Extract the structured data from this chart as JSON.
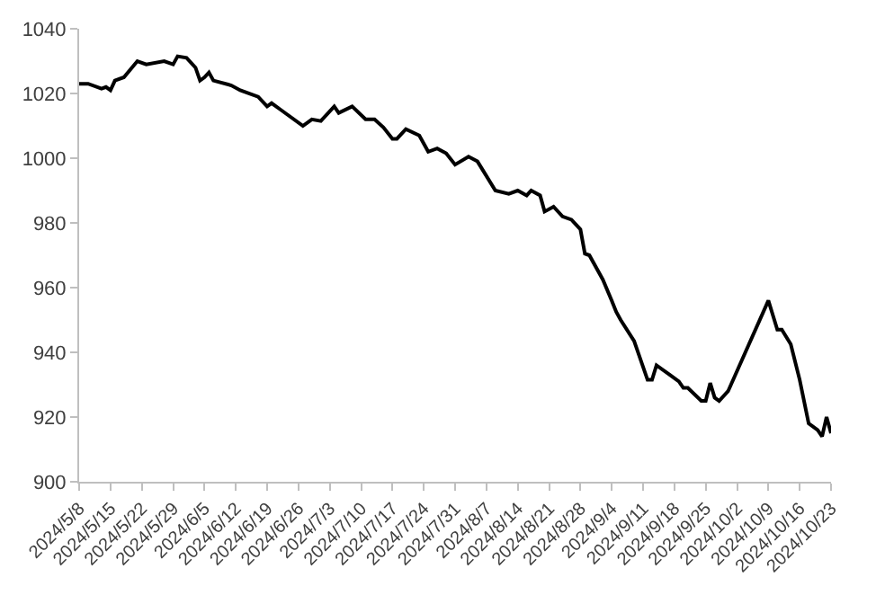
{
  "chart_data": {
    "type": "line",
    "x": [
      "2024-05-08",
      "2024-05-10",
      "2024-05-13",
      "2024-05-14",
      "2024-05-15",
      "2024-05-16",
      "2024-05-18",
      "2024-05-21",
      "2024-05-23",
      "2024-05-27",
      "2024-05-29",
      "2024-05-30",
      "2024-06-01",
      "2024-06-03",
      "2024-06-04",
      "2024-06-05",
      "2024-06-06",
      "2024-06-07",
      "2024-06-11",
      "2024-06-13",
      "2024-06-17",
      "2024-06-19",
      "2024-06-20",
      "2024-06-22",
      "2024-06-27",
      "2024-06-29",
      "2024-07-01",
      "2024-07-04",
      "2024-07-05",
      "2024-07-08",
      "2024-07-11",
      "2024-07-13",
      "2024-07-15",
      "2024-07-17",
      "2024-07-18",
      "2024-07-20",
      "2024-07-23",
      "2024-07-25",
      "2024-07-27",
      "2024-07-29",
      "2024-07-31",
      "2024-08-03",
      "2024-08-05",
      "2024-08-09",
      "2024-08-12",
      "2024-08-14",
      "2024-08-16",
      "2024-08-17",
      "2024-08-19",
      "2024-08-20",
      "2024-08-22",
      "2024-08-24",
      "2024-08-26",
      "2024-08-28",
      "2024-08-29",
      "2024-08-30",
      "2024-09-02",
      "2024-09-04",
      "2024-09-05",
      "2024-09-06",
      "2024-09-09",
      "2024-09-12",
      "2024-09-13",
      "2024-09-14",
      "2024-09-17",
      "2024-09-19",
      "2024-09-20",
      "2024-09-21",
      "2024-09-24",
      "2024-09-25",
      "2024-09-26",
      "2024-09-27",
      "2024-09-28",
      "2024-09-30",
      "2024-10-09",
      "2024-10-11",
      "2024-10-12",
      "2024-10-14",
      "2024-10-16",
      "2024-10-18",
      "2024-10-20",
      "2024-10-21",
      "2024-10-22",
      "2024-10-23"
    ],
    "series": [
      {
        "color": "#000000",
        "values": [
          1023,
          1023,
          1021.5,
          1022,
          1021,
          1024,
          1025,
          1030,
          1029,
          1030,
          1029,
          1031.5,
          1031,
          1028,
          1024,
          1025,
          1026.5,
          1024,
          1022.5,
          1021,
          1019,
          1016,
          1017,
          1015,
          1010,
          1012,
          1011.5,
          1016,
          1014,
          1016,
          1012,
          1012,
          1009.5,
          1006,
          1006,
          1009,
          1007,
          1002,
          1003,
          1001.5,
          998,
          1000.5,
          999,
          990,
          989,
          990,
          988.5,
          990,
          988.5,
          983.5,
          985,
          982,
          981,
          978,
          970.5,
          970,
          962.5,
          956,
          952.5,
          950,
          943.5,
          931.5,
          931.5,
          936,
          933,
          931,
          929,
          929,
          925,
          925,
          930.5,
          926,
          925,
          928,
          956,
          947,
          947,
          942.5,
          931.5,
          918,
          916,
          914,
          920,
          915
        ]
      }
    ],
    "xlim": [
      "2024-05-08",
      "2024-10-23"
    ],
    "xticks": [
      {
        "value": "2024-05-08",
        "label": "2024/5/8"
      },
      {
        "value": "2024-05-15",
        "label": "2024/5/15"
      },
      {
        "value": "2024-05-22",
        "label": "2024/5/22"
      },
      {
        "value": "2024-05-29",
        "label": "2024/5/29"
      },
      {
        "value": "2024-06-05",
        "label": "2024/6/5"
      },
      {
        "value": "2024-06-12",
        "label": "2024/6/12"
      },
      {
        "value": "2024-06-19",
        "label": "2024/6/19"
      },
      {
        "value": "2024-06-26",
        "label": "2024/6/26"
      },
      {
        "value": "2024-07-03",
        "label": "2024/7/3"
      },
      {
        "value": "2024-07-10",
        "label": "2024/7/10"
      },
      {
        "value": "2024-07-17",
        "label": "2024/7/17"
      },
      {
        "value": "2024-07-24",
        "label": "2024/7/24"
      },
      {
        "value": "2024-07-31",
        "label": "2024/7/31"
      },
      {
        "value": "2024-08-07",
        "label": "2024/8/7"
      },
      {
        "value": "2024-08-14",
        "label": "2024/8/14"
      },
      {
        "value": "2024-08-21",
        "label": "2024/8/21"
      },
      {
        "value": "2024-08-28",
        "label": "2024/8/28"
      },
      {
        "value": "2024-09-04",
        "label": "2024/9/4"
      },
      {
        "value": "2024-09-11",
        "label": "2024/9/11"
      },
      {
        "value": "2024-09-18",
        "label": "2024/9/18"
      },
      {
        "value": "2024-09-25",
        "label": "2024/9/25"
      },
      {
        "value": "2024-10-02",
        "label": "2024/10/2"
      },
      {
        "value": "2024-10-09",
        "label": "2024/10/9"
      },
      {
        "value": "2024-10-16",
        "label": "2024/10/16"
      },
      {
        "value": "2024-10-23",
        "label": "2024/10/23"
      }
    ],
    "ylim": [
      900,
      1040
    ],
    "yticks": [
      900,
      920,
      940,
      960,
      980,
      1000,
      1020,
      1040
    ],
    "marker": "none",
    "line_style": "solid"
  }
}
